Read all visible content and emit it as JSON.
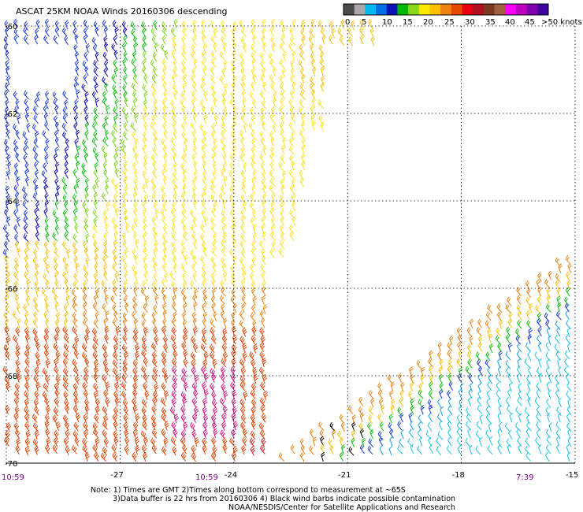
{
  "title": "ASCAT 25KM NOAA Winds 20160306 descending",
  "colorbar": {
    "colors": [
      "#4a4a4a",
      "#a8a8a8",
      "#00b8f0",
      "#0070e8",
      "#0a12b8",
      "#00b800",
      "#8ad818",
      "#ffe800",
      "#ffc000",
      "#f08010",
      "#e84800",
      "#e80010",
      "#b01020",
      "#7a3a20",
      "#a06040",
      "#ff00ff",
      "#c000c0",
      "#8000b0",
      "#4000a0"
    ],
    "labels": [
      "0",
      "5",
      "10",
      "15",
      "20",
      "25",
      "30",
      "35",
      "40",
      "45",
      ">50 knots"
    ]
  },
  "lat_labels": [
    "-60",
    "-62",
    "-64",
    "-66",
    "-68",
    "-70"
  ],
  "lon_labels": [
    "-27",
    "-24",
    "-21",
    "-18",
    "-15"
  ],
  "time_labels": [
    "10:59",
    "10:59",
    "7:39"
  ],
  "notes": {
    "line1": "Note: 1) Times are GMT 2)Times along bottom correspond to measurement at ~65S",
    "line2": "3)Data buffer is 22 hrs from 20160306 4) Black wind barbs indicate possible contamination",
    "line3": "NOAA/NESDIS/Center for Satellite Applications and Research"
  },
  "speed_colors": {
    "cyan": "#19c3e8",
    "lightblue": "#10a0e8",
    "blue": "#1a3ad8",
    "darkblue": "#0a0ab0",
    "green": "#0cc00c",
    "lime": "#7ad818",
    "yellow": "#f8e020",
    "gold": "#f5c010",
    "orange": "#f08010",
    "red": "#e04000",
    "darkred": "#c02020",
    "magenta": "#d0107a",
    "black": "#000000"
  }
}
